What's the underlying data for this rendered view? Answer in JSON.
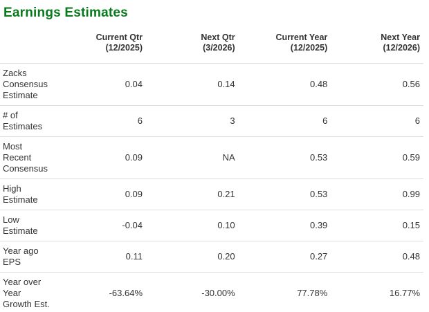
{
  "section": {
    "title": "Earnings Estimates"
  },
  "colors": {
    "title_green": "#087a1c",
    "text": "#333333",
    "divider": "#dddddd"
  },
  "table": {
    "columns": [
      {
        "label": "Current Qtr",
        "date": "(12/2025)"
      },
      {
        "label": "Next Qtr",
        "date": "(3/2026)"
      },
      {
        "label": "Current Year",
        "date": "(12/2025)"
      },
      {
        "label": "Next Year",
        "date": "(12/2026)"
      }
    ],
    "rows": [
      {
        "label": "Zacks Consensus Estimate",
        "values": [
          "0.04",
          "0.14",
          "0.48",
          "0.56"
        ]
      },
      {
        "label": "# of Estimates",
        "values": [
          "6",
          "3",
          "6",
          "6"
        ]
      },
      {
        "label": "Most Recent Consensus",
        "values": [
          "0.09",
          "NA",
          "0.53",
          "0.59"
        ]
      },
      {
        "label": "High Estimate",
        "values": [
          "0.09",
          "0.21",
          "0.53",
          "0.99"
        ]
      },
      {
        "label": "Low Estimate",
        "values": [
          "-0.04",
          "0.10",
          "0.39",
          "0.15"
        ]
      },
      {
        "label": "Year ago EPS",
        "values": [
          "0.11",
          "0.20",
          "0.27",
          "0.48"
        ]
      },
      {
        "label": "Year over Year Growth Est.",
        "values": [
          "-63.64%",
          "-30.00%",
          "77.78%",
          "16.77%"
        ]
      }
    ]
  }
}
